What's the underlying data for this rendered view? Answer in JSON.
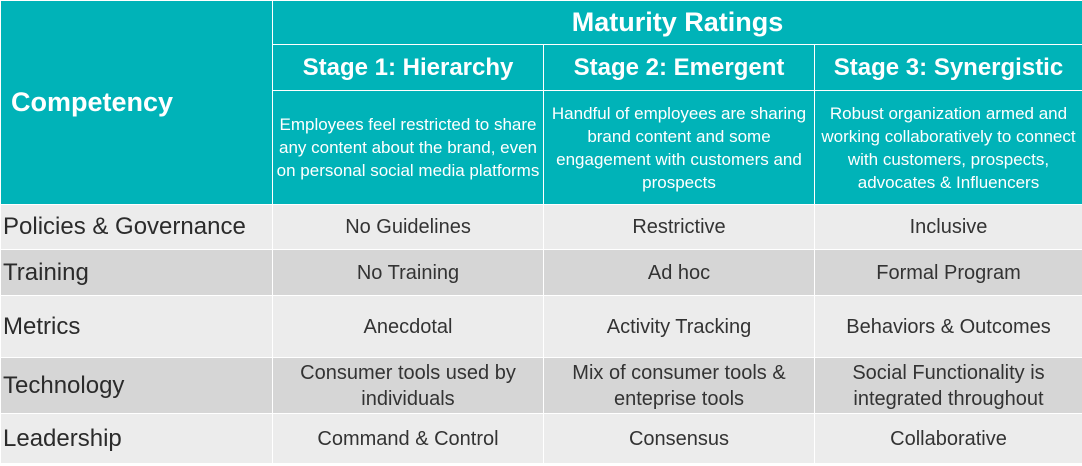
{
  "header": {
    "competency_label": "Competency",
    "maturity_title": "Maturity Ratings",
    "stages": [
      {
        "title": "Stage 1: Hierarchy",
        "description": "Employees feel restricted to share any content about the brand, even on personal social media platforms"
      },
      {
        "title": "Stage 2: Emergent",
        "description": "Handful of employees are sharing brand content and some engagement with customers and prospects"
      },
      {
        "title": "Stage 3: Synergistic",
        "description": "Robust organization armed and working collaboratively to connect with customers, prospects, advocates & Influencers"
      }
    ]
  },
  "rows": [
    {
      "competency": "Policies & Governance",
      "values": [
        "No Guidelines",
        "Restrictive",
        "Inclusive"
      ]
    },
    {
      "competency": "Training",
      "values": [
        "No Training",
        "Ad hoc",
        "Formal Program"
      ]
    },
    {
      "competency": "Metrics",
      "values": [
        "Anecdotal",
        "Activity Tracking",
        "Behaviors & Outcomes"
      ]
    },
    {
      "competency": "Technology",
      "values": [
        "Consumer tools used by individuals",
        "Mix of consumer tools & enteprise tools",
        "Social Functionality is integrated throughout"
      ]
    },
    {
      "competency": "Leadership",
      "values": [
        "Command & Control",
        "Consensus",
        "Collaborative"
      ]
    }
  ],
  "colors": {
    "header_teal": "#00b3b8",
    "row_light": "#ececec",
    "row_dark": "#d6d6d6"
  }
}
